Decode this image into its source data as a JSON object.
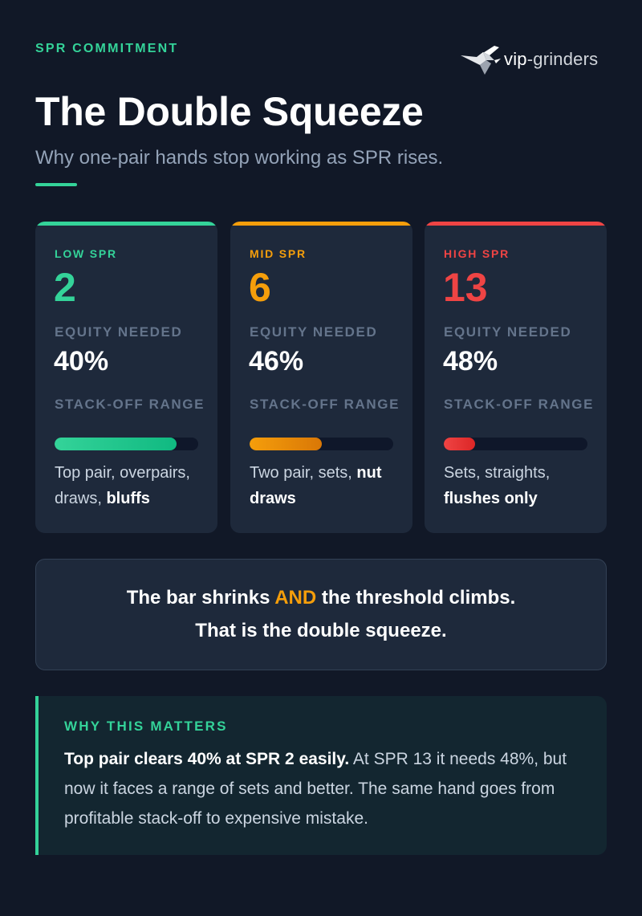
{
  "header": {
    "eyebrow": "SPR COMMITMENT",
    "title": "The Double Squeeze",
    "subtitle": "Why one-pair hands stop working as SPR rises.",
    "logo": {
      "icon": "bird-logo-icon",
      "brand_bold": "vip",
      "brand_thin": "-grinders"
    }
  },
  "cards": [
    {
      "label": "LOW SPR",
      "value": "2",
      "color": "#34d399",
      "equity_label": "EQUITY NEEDED",
      "equity_value": "40%",
      "stackoff_label": "STACK-OFF RANGE",
      "stackoff_fraction": 0.85,
      "bar_gradient": [
        "#34d399",
        "#10b981"
      ],
      "desc_text": "Top pair, overpairs, draws, ",
      "desc_bold": "bluffs"
    },
    {
      "label": "MID SPR",
      "value": "6",
      "color": "#f59e0b",
      "equity_label": "EQUITY NEEDED",
      "equity_value": "46%",
      "stackoff_label": "STACK-OFF RANGE",
      "stackoff_fraction": 0.5,
      "bar_gradient": [
        "#f59e0b",
        "#d97706"
      ],
      "desc_text": "Two pair, sets, ",
      "desc_bold": "nut draws"
    },
    {
      "label": "HIGH SPR",
      "value": "13",
      "color": "#ef4444",
      "equity_label": "EQUITY NEEDED",
      "equity_value": "48%",
      "stackoff_label": "STACK-OFF RANGE",
      "stackoff_fraction": 0.22,
      "bar_gradient": [
        "#ef4444",
        "#dc2626"
      ],
      "desc_text": "Sets, straights, ",
      "desc_bold": "flushes only"
    }
  ],
  "callout": {
    "line1_pre": "The bar shrinks ",
    "line1_highlight": "AND",
    "line1_post": " the threshold climbs.",
    "line2": "That is the double squeeze."
  },
  "why": {
    "label": "WHY THIS MATTERS",
    "bold": "Top pair clears 40% at SPR 2 easily.",
    "text": " At SPR 13 it needs 48%, but now it faces a range of sets and better. The same hand goes from profitable stack-off to expensive mistake."
  }
}
